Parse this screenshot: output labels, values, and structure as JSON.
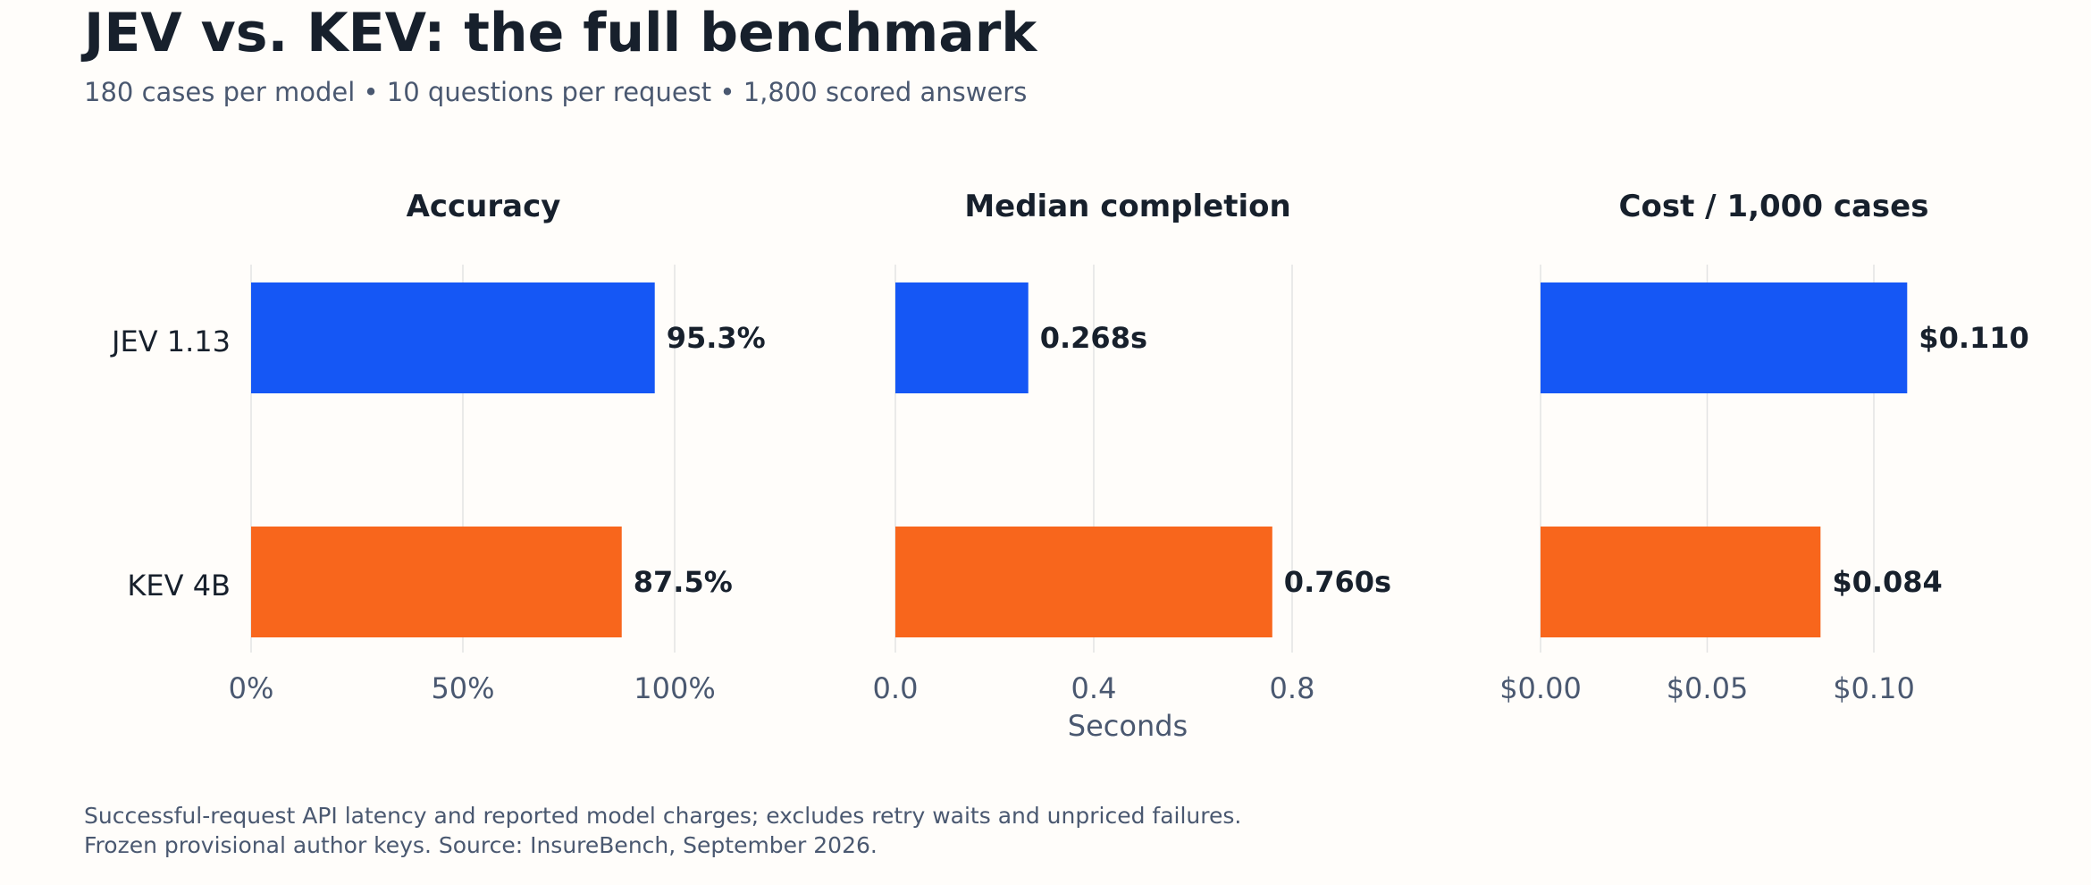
{
  "header": {
    "title": "JEV vs. KEV: the full benchmark",
    "subtitle": "180 cases per model  •  10 questions per request  •  1,800 scored answers"
  },
  "footnotes": [
    "Successful-request API latency and reported model charges; excludes retry waits and unpriced failures.",
    "Frozen provisional author keys. Source: InsureBench, September 2026."
  ],
  "colors": {
    "JEV 1.13": "#1557f5",
    "KEV 4B": "#f8661c",
    "text": "#17202c",
    "muted": "#4a5870",
    "grid": "#e3e3e3"
  },
  "chart_data": [
    {
      "type": "bar",
      "orientation": "horizontal",
      "title": "Accuracy",
      "categories": [
        "JEV 1.13",
        "KEV 4B"
      ],
      "values": [
        95.3,
        87.5
      ],
      "value_labels": [
        "95.3%",
        "87.5%"
      ],
      "xlabel": "",
      "xlim": [
        0,
        100
      ],
      "xticks": [
        0,
        50,
        100
      ],
      "xtick_labels": [
        "0%",
        "50%",
        "100%"
      ],
      "grid": true
    },
    {
      "type": "bar",
      "orientation": "horizontal",
      "title": "Median completion",
      "categories": [
        "JEV 1.13",
        "KEV 4B"
      ],
      "values": [
        0.268,
        0.76
      ],
      "value_labels": [
        "0.268s",
        "0.760s"
      ],
      "xlabel": "Seconds",
      "xlim": [
        0,
        0.8
      ],
      "xticks": [
        0,
        0.4,
        0.8
      ],
      "xtick_labels": [
        "0.0",
        "0.4",
        "0.8"
      ],
      "grid": true
    },
    {
      "type": "bar",
      "orientation": "horizontal",
      "title": "Cost / 1,000 cases",
      "categories": [
        "JEV 1.13",
        "KEV 4B"
      ],
      "values": [
        0.11,
        0.084
      ],
      "value_labels": [
        "$0.110",
        "$0.084"
      ],
      "xlabel": "",
      "xlim": [
        0,
        0.1
      ],
      "xticks": [
        0,
        0.05,
        0.1
      ],
      "xtick_labels": [
        "$0.00",
        "$0.05",
        "$0.10"
      ],
      "grid": true
    }
  ]
}
